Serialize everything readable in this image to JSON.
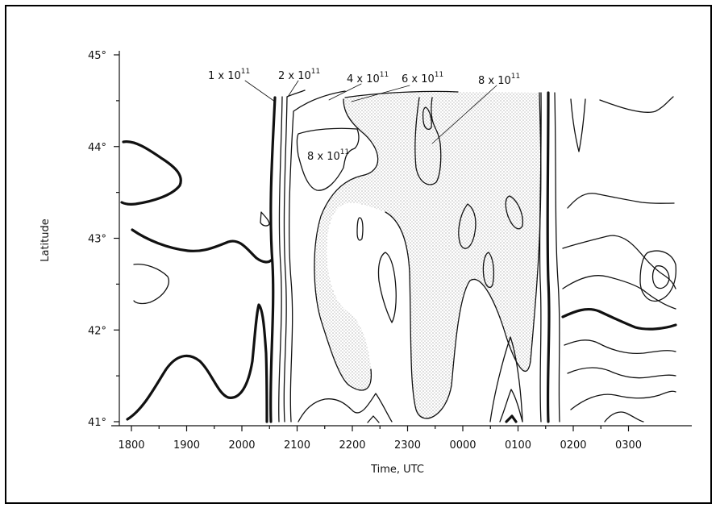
{
  "chart_data": {
    "type": "contour",
    "xlabel": "Time, UTC",
    "ylabel": "Latitude",
    "x_ticks": [
      "1800",
      "1900",
      "2000",
      "2100",
      "2200",
      "2300",
      "0000",
      "0100",
      "0200",
      "0300"
    ],
    "y_ticks": [
      "41°",
      "42°",
      "43°",
      "44°",
      "45°"
    ],
    "xlim": [
      1800,
      3030
    ],
    "ylim": [
      41,
      45
    ],
    "shading": "stippled where value > 6 x 10^11",
    "contour_levels": [
      {
        "base": "1 x 10",
        "exp": "11"
      },
      {
        "base": "2 x 10",
        "exp": "11"
      },
      {
        "base": "4 x 10",
        "exp": "11"
      },
      {
        "base": "6 x 10",
        "exp": "11"
      },
      {
        "base": "8 x 10",
        "exp": "11"
      }
    ],
    "inner_label": {
      "base": "8 x 10",
      "exp": "11"
    },
    "colors": {
      "line": "#111111",
      "stipple": "#9a9a9a",
      "background": "#ffffff"
    }
  }
}
